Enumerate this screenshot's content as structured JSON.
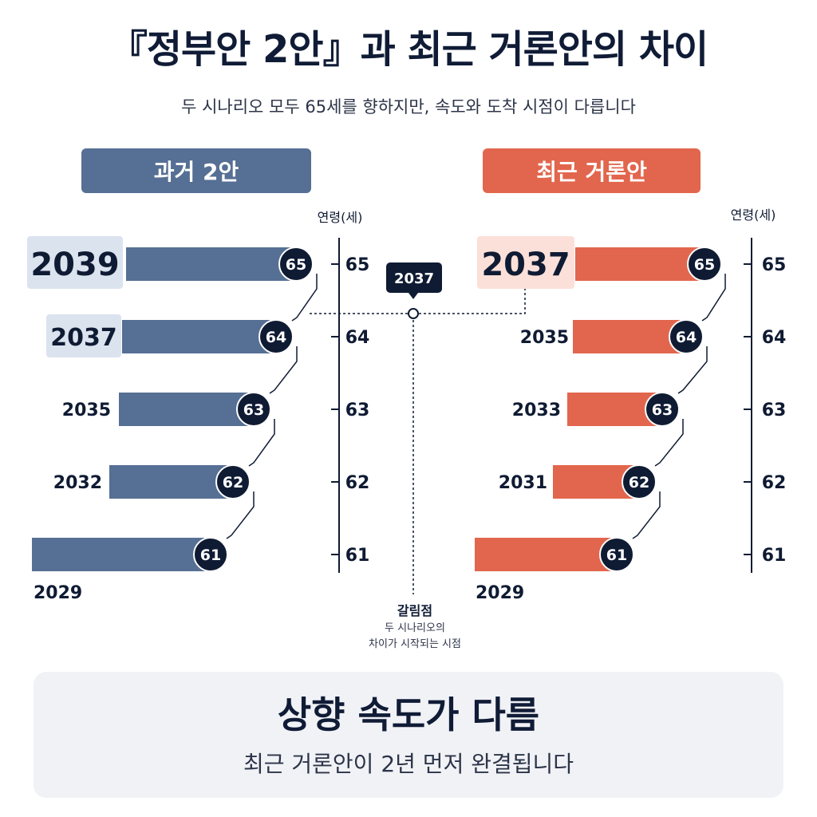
{
  "header": {
    "title": "『정부안 2안』과 최근 거론안의 차이",
    "subtitle": "두 시나리오 모두 65세를 향하지만, 속도와 도착 시점이 다릅니다"
  },
  "panels": {
    "left_label": "과거 2안",
    "right_label": "최근 거론안"
  },
  "chart_data": [
    {
      "type": "bar",
      "name": "과거 2안",
      "axis_label": "연령(세)",
      "categories": [
        "2029",
        "2032",
        "2035",
        "2037",
        "2039"
      ],
      "values": [
        61,
        62,
        63,
        64,
        65
      ],
      "y_ticks": [
        61,
        62,
        63,
        64,
        65
      ],
      "highlight_year": "2039",
      "secondary_highlight": "2037",
      "color": "#566f94"
    },
    {
      "type": "bar",
      "name": "최근 거론안",
      "axis_label": "연령(세)",
      "categories": [
        "2029",
        "2031",
        "2033",
        "2035",
        "2037"
      ],
      "values": [
        61,
        62,
        63,
        64,
        65
      ],
      "y_ticks": [
        61,
        62,
        63,
        64,
        65
      ],
      "highlight_year": "2037",
      "color": "#e2664d"
    }
  ],
  "divergence": {
    "year_label": "2037",
    "title": "갈림점",
    "note_line1": "두 시나리오의",
    "note_line2": "차이가 시작되는 시점"
  },
  "footer": {
    "title": "상향 속도가 다름",
    "subtitle": "최근 거론안이 2년 먼저 완결됩니다"
  },
  "colors": {
    "navy": "#0f1b33",
    "blue": "#566f94",
    "coral": "#e2664d",
    "highlight_blue": "#dbe3ef",
    "highlight_coral": "#fbe0d9"
  }
}
